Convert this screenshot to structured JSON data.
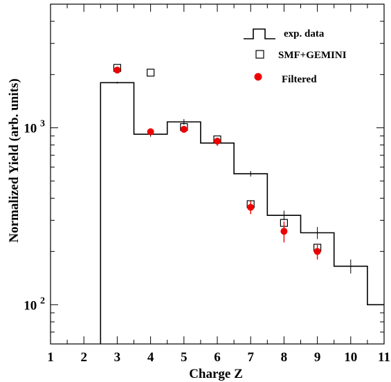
{
  "chart_data": {
    "type": "scatter",
    "xlabel": "Charge Z",
    "ylabel": "Normalized Yield (arb. units)",
    "xlim": [
      1,
      11
    ],
    "ylim": [
      60,
      5000
    ],
    "yscale": "log",
    "x_ticks": [
      1,
      2,
      3,
      4,
      5,
      6,
      7,
      8,
      9,
      10,
      11
    ],
    "y_ticks": [
      {
        "value": 100,
        "base": "10",
        "exp": "2"
      },
      {
        "value": 1000,
        "base": "10",
        "exp": "3"
      }
    ],
    "legend_position": "top-right",
    "grid": false,
    "colors": {
      "exp": "#000000",
      "smf": "#000000",
      "filtered": "#ee0000"
    },
    "series": [
      {
        "name": "exp. data",
        "style": "step",
        "x": [
          3,
          4,
          5,
          6,
          7,
          8,
          9,
          10,
          11
        ],
        "y": [
          1800,
          920,
          1080,
          820,
          550,
          320,
          255,
          165,
          100
        ],
        "err": [
          20,
          30,
          40,
          30,
          20,
          20,
          20,
          15,
          0
        ]
      },
      {
        "name": "SMF+GEMINI",
        "style": "open-square",
        "x": [
          3,
          4,
          5,
          6,
          7,
          8,
          9
        ],
        "y": [
          2180,
          2050,
          1010,
          860,
          370,
          290,
          210
        ]
      },
      {
        "name": "Filtered",
        "style": "filled-circle",
        "x": [
          3,
          4,
          5,
          6,
          7,
          8,
          9
        ],
        "y": [
          2120,
          950,
          980,
          840,
          355,
          260,
          200
        ],
        "err": [
          60,
          40,
          40,
          30,
          30,
          35,
          20
        ]
      }
    ]
  }
}
